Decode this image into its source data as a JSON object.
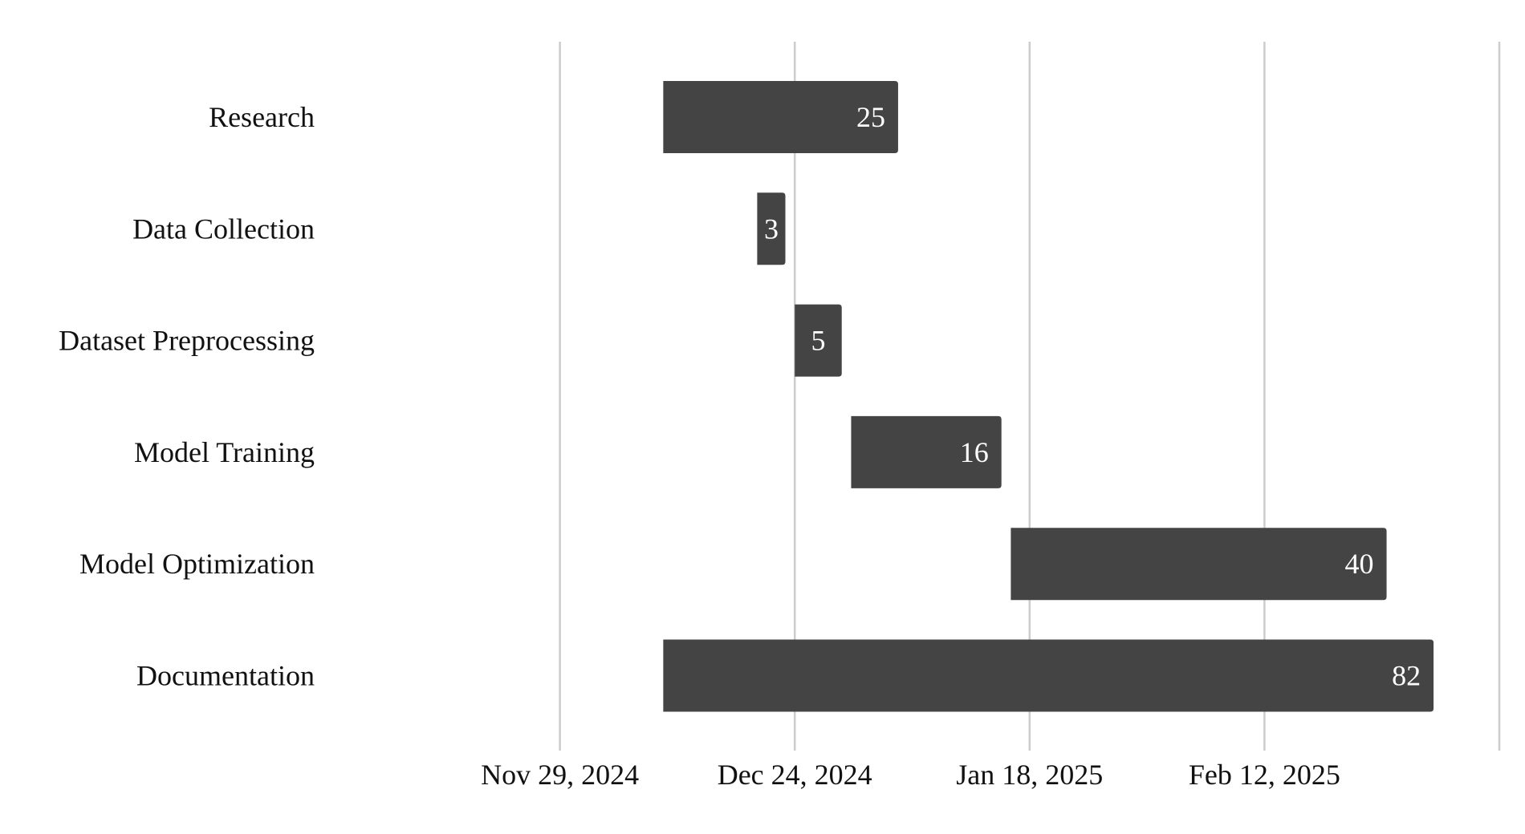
{
  "chart_data": {
    "type": "bar",
    "orientation": "horizontal-gantt",
    "title": "",
    "xlabel": "",
    "ylabel": "",
    "x_axis_type": "date",
    "xlim": [
      "2024-11-04",
      "2025-03-09"
    ],
    "x_ticks": [
      {
        "date": "2024-11-29",
        "label": "Nov 29, 2024"
      },
      {
        "date": "2024-12-24",
        "label": "Dec 24, 2024"
      },
      {
        "date": "2025-01-18",
        "label": "Jan 18, 2025"
      },
      {
        "date": "2025-02-12",
        "label": "Feb 12, 2025"
      }
    ],
    "grid": true,
    "bar_color": "#444444",
    "label_color": "#ffffff",
    "tasks": [
      {
        "name": "Research",
        "start": "2024-12-10",
        "end": "2025-01-04",
        "duration": 25
      },
      {
        "name": "Data Collection",
        "start": "2024-12-20",
        "end": "2024-12-23",
        "duration": 3
      },
      {
        "name": "Dataset Preprocessing",
        "start": "2024-12-24",
        "end": "2024-12-29",
        "duration": 5
      },
      {
        "name": "Model Training",
        "start": "2024-12-30",
        "end": "2025-01-15",
        "duration": 16
      },
      {
        "name": "Model Optimization",
        "start": "2025-01-16",
        "end": "2025-02-25",
        "duration": 40
      },
      {
        "name": "Documentation",
        "start": "2024-12-10",
        "end": "2025-03-02",
        "duration": 82
      }
    ]
  }
}
